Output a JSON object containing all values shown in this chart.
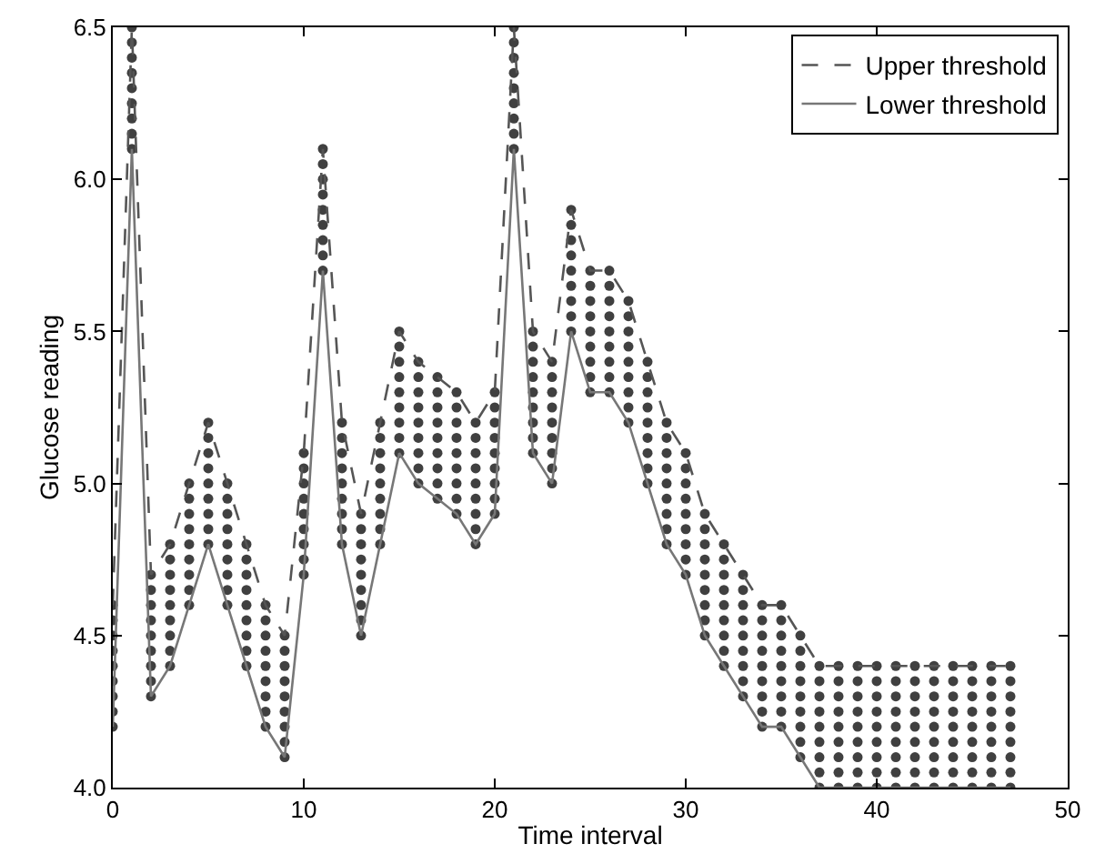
{
  "chart_data": {
    "type": "scatter",
    "xlabel": "Time interval",
    "ylabel": "Glucose reading",
    "xlim": [
      0,
      50
    ],
    "xticks": [
      0,
      10,
      20,
      30,
      40,
      50
    ],
    "ylim": [
      4.0,
      6.5
    ],
    "yticks": [
      {
        "value": 4.0,
        "label": "4.0"
      },
      {
        "value": 4.5,
        "label": "4.5"
      },
      {
        "value": 5.0,
        "label": "5.0"
      },
      {
        "value": 5.5,
        "label": "5.5"
      },
      {
        "value": 6.0,
        "label": "6.0"
      },
      {
        "value": 6.5,
        "label": "6.5"
      }
    ],
    "legend": "top right",
    "series": [
      {
        "marker": "circle",
        "color": "#404040",
        "x": [
          0,
          0,
          0,
          0,
          0,
          0,
          0,
          0,
          0,
          1,
          1,
          1,
          1,
          1,
          1,
          1,
          1,
          1,
          2,
          2,
          2,
          2,
          2,
          2,
          2,
          2,
          2,
          3,
          3,
          3,
          3,
          3,
          3,
          3,
          3,
          3,
          4,
          4,
          4,
          4,
          4,
          4,
          4,
          4,
          4,
          5,
          5,
          5,
          5,
          5,
          5,
          5,
          5,
          5,
          6,
          6,
          6,
          6,
          6,
          6,
          6,
          6,
          6,
          7,
          7,
          7,
          7,
          7,
          7,
          7,
          7,
          7,
          8,
          8,
          8,
          8,
          8,
          8,
          8,
          8,
          8,
          9,
          9,
          9,
          9,
          9,
          9,
          9,
          9,
          9,
          10,
          10,
          10,
          10,
          10,
          10,
          10,
          10,
          10,
          11,
          11,
          11,
          11,
          11,
          11,
          11,
          11,
          11,
          12,
          12,
          12,
          12,
          12,
          12,
          12,
          12,
          12,
          13,
          13,
          13,
          13,
          13,
          13,
          13,
          13,
          13,
          14,
          14,
          14,
          14,
          14,
          14,
          14,
          14,
          14,
          15,
          15,
          15,
          15,
          15,
          15,
          15,
          15,
          15,
          16,
          16,
          16,
          16,
          16,
          16,
          16,
          16,
          16,
          17,
          17,
          17,
          17,
          17,
          17,
          17,
          17,
          17,
          18,
          18,
          18,
          18,
          18,
          18,
          18,
          18,
          18,
          19,
          19,
          19,
          19,
          19,
          19,
          19,
          19,
          19,
          20,
          20,
          20,
          20,
          20,
          20,
          20,
          20,
          20,
          21,
          21,
          21,
          21,
          21,
          21,
          21,
          21,
          21,
          22,
          22,
          22,
          22,
          22,
          22,
          22,
          22,
          22,
          23,
          23,
          23,
          23,
          23,
          23,
          23,
          23,
          23,
          24,
          24,
          24,
          24,
          24,
          24,
          24,
          24,
          24,
          25,
          25,
          25,
          25,
          25,
          25,
          25,
          25,
          25,
          26,
          26,
          26,
          26,
          26,
          26,
          26,
          26,
          26,
          27,
          27,
          27,
          27,
          27,
          27,
          27,
          27,
          27,
          28,
          28,
          28,
          28,
          28,
          28,
          28,
          28,
          28,
          29,
          29,
          29,
          29,
          29,
          29,
          29,
          29,
          29,
          30,
          30,
          30,
          30,
          30,
          30,
          30,
          30,
          30,
          31,
          31,
          31,
          31,
          31,
          31,
          31,
          31,
          31,
          32,
          32,
          32,
          32,
          32,
          32,
          32,
          32,
          32,
          33,
          33,
          33,
          33,
          33,
          33,
          33,
          33,
          33,
          34,
          34,
          34,
          34,
          34,
          34,
          34,
          34,
          34,
          35,
          35,
          35,
          35,
          35,
          35,
          35,
          35,
          35,
          36,
          36,
          36,
          36,
          36,
          36,
          36,
          36,
          36,
          37,
          37,
          37,
          37,
          37,
          37,
          37,
          37,
          37,
          38,
          38,
          38,
          38,
          38,
          38,
          38,
          38,
          38,
          39,
          39,
          39,
          39,
          39,
          39,
          39,
          39,
          39,
          40,
          40,
          40,
          40,
          40,
          40,
          40,
          40,
          40,
          41,
          41,
          41,
          41,
          41,
          41,
          41,
          41,
          41,
          42,
          42,
          42,
          42,
          42,
          42,
          42,
          42,
          42,
          43,
          43,
          43,
          43,
          43,
          43,
          43,
          43,
          43,
          44,
          44,
          44,
          44,
          44,
          44,
          44,
          44,
          44,
          45,
          45,
          45,
          45,
          45,
          45,
          45,
          45,
          45,
          46,
          46,
          46,
          46,
          46,
          46,
          46,
          46,
          46,
          47,
          47,
          47,
          47,
          47,
          47,
          47,
          47,
          47
        ],
        "values": [
          4.2,
          4.25,
          4.3,
          4.35,
          4.4,
          4.45,
          4.5,
          4.55,
          4.6,
          6.1,
          6.15,
          6.2,
          6.25,
          6.3,
          6.35,
          6.4,
          6.45,
          6.5,
          4.3,
          4.35,
          4.4,
          4.45,
          4.5,
          4.55,
          4.6,
          4.65,
          4.7,
          4.4,
          4.45,
          4.5,
          4.55,
          4.6,
          4.65,
          4.7,
          4.75,
          4.8,
          4.6,
          4.65,
          4.7,
          4.75,
          4.8,
          4.85,
          4.9,
          4.95,
          5.0,
          4.8,
          4.85,
          4.9,
          4.95,
          5.0,
          5.05,
          5.1,
          5.15,
          5.2,
          4.6,
          4.65,
          4.7,
          4.75,
          4.8,
          4.85,
          4.9,
          4.95,
          5.0,
          4.4,
          4.45,
          4.5,
          4.55,
          4.6,
          4.65,
          4.7,
          4.75,
          4.8,
          4.2,
          4.25,
          4.3,
          4.35,
          4.4,
          4.45,
          4.5,
          4.55,
          4.6,
          4.1,
          4.15,
          4.2,
          4.25,
          4.3,
          4.35,
          4.4,
          4.45,
          4.5,
          4.7,
          4.75,
          4.8,
          4.85,
          4.9,
          4.95,
          5.0,
          5.05,
          5.1,
          5.7,
          5.75,
          5.8,
          5.85,
          5.9,
          5.95,
          6.0,
          6.05,
          6.1,
          4.8,
          4.85,
          4.9,
          4.95,
          5.0,
          5.05,
          5.1,
          5.15,
          5.2,
          4.5,
          4.55,
          4.6,
          4.65,
          4.7,
          4.75,
          4.8,
          4.85,
          4.9,
          4.8,
          4.85,
          4.9,
          4.95,
          5.0,
          5.05,
          5.1,
          5.15,
          5.2,
          5.1,
          5.15,
          5.2,
          5.25,
          5.3,
          5.35,
          5.4,
          5.45,
          5.5,
          5.0,
          5.05,
          5.1,
          5.15,
          5.2,
          5.25,
          5.3,
          5.35,
          5.4,
          4.95,
          5.0,
          5.05,
          5.1,
          5.15,
          5.2,
          5.25,
          5.3,
          5.35,
          4.9,
          4.95,
          5.0,
          5.05,
          5.1,
          5.15,
          5.2,
          5.25,
          5.3,
          4.8,
          4.85,
          4.9,
          4.95,
          5.0,
          5.05,
          5.1,
          5.15,
          5.2,
          4.9,
          4.95,
          5.0,
          5.05,
          5.1,
          5.15,
          5.2,
          5.25,
          5.3,
          6.1,
          6.15,
          6.2,
          6.25,
          6.3,
          6.35,
          6.4,
          6.45,
          6.5,
          5.1,
          5.15,
          5.2,
          5.25,
          5.3,
          5.35,
          5.4,
          5.45,
          5.5,
          5.0,
          5.05,
          5.1,
          5.15,
          5.2,
          5.25,
          5.3,
          5.35,
          5.4,
          5.5,
          5.55,
          5.6,
          5.65,
          5.7,
          5.75,
          5.8,
          5.85,
          5.9,
          5.3,
          5.35,
          5.4,
          5.45,
          5.5,
          5.55,
          5.6,
          5.65,
          5.7,
          5.3,
          5.35,
          5.4,
          5.45,
          5.5,
          5.55,
          5.6,
          5.65,
          5.7,
          5.2,
          5.25,
          5.3,
          5.35,
          5.4,
          5.45,
          5.5,
          5.55,
          5.6,
          5.0,
          5.05,
          5.1,
          5.15,
          5.2,
          5.25,
          5.3,
          5.35,
          5.4,
          4.8,
          4.85,
          4.9,
          4.95,
          5.0,
          5.05,
          5.1,
          5.15,
          5.2,
          4.7,
          4.75,
          4.8,
          4.85,
          4.9,
          4.95,
          5.0,
          5.05,
          5.1,
          4.5,
          4.55,
          4.6,
          4.65,
          4.7,
          4.75,
          4.8,
          4.85,
          4.9,
          4.4,
          4.45,
          4.5,
          4.55,
          4.6,
          4.65,
          4.7,
          4.75,
          4.8,
          4.3,
          4.35,
          4.4,
          4.45,
          4.5,
          4.55,
          4.6,
          4.65,
          4.7,
          4.2,
          4.25,
          4.3,
          4.35,
          4.4,
          4.45,
          4.5,
          4.55,
          4.6,
          4.2,
          4.25,
          4.3,
          4.35,
          4.4,
          4.45,
          4.5,
          4.55,
          4.6,
          4.1,
          4.15,
          4.2,
          4.25,
          4.3,
          4.35,
          4.4,
          4.45,
          4.5,
          4.0,
          4.05,
          4.1,
          4.15,
          4.2,
          4.25,
          4.3,
          4.35,
          4.4,
          4.0,
          4.05,
          4.1,
          4.15,
          4.2,
          4.25,
          4.3,
          4.35,
          4.4,
          4.0,
          4.05,
          4.1,
          4.15,
          4.2,
          4.25,
          4.3,
          4.35,
          4.4,
          4.0,
          4.05,
          4.1,
          4.15,
          4.2,
          4.25,
          4.3,
          4.35,
          4.4,
          4.0,
          4.05,
          4.1,
          4.15,
          4.2,
          4.25,
          4.3,
          4.35,
          4.4,
          4.0,
          4.05,
          4.1,
          4.15,
          4.2,
          4.25,
          4.3,
          4.35,
          4.4,
          4.0,
          4.05,
          4.1,
          4.15,
          4.2,
          4.25,
          4.3,
          4.35,
          4.4,
          4.0,
          4.05,
          4.1,
          4.15,
          4.2,
          4.25,
          4.3,
          4.35,
          4.4,
          4.0,
          4.05,
          4.1,
          4.15,
          4.2,
          4.25,
          4.3,
          4.35,
          4.4,
          4.0,
          4.05,
          4.1,
          4.15,
          4.2,
          4.25,
          4.3,
          4.35,
          4.4,
          4.0,
          4.05,
          4.1,
          4.15,
          4.2,
          4.25,
          4.3,
          4.35,
          4.4
        ]
      },
      {
        "type": "line",
        "name": "Upper threshold",
        "color": "#555555",
        "line_style": "dashed",
        "marker": "none",
        "x": [
          0,
          1,
          2,
          3,
          4,
          5,
          6,
          7,
          8,
          9,
          10,
          11,
          12,
          13,
          14,
          15,
          16,
          17,
          18,
          19,
          20,
          21,
          22,
          23,
          24,
          25,
          26,
          27,
          28,
          29,
          30,
          31,
          32,
          33,
          34,
          35,
          36,
          37,
          38,
          39,
          40,
          41,
          42,
          43,
          44,
          45,
          46,
          47
        ],
        "values": [
          4.6,
          6.5,
          4.7,
          4.8,
          5.0,
          5.2,
          5.0,
          4.8,
          4.6,
          4.5,
          5.1,
          6.1,
          5.2,
          4.9,
          5.2,
          5.5,
          5.4,
          5.35,
          5.3,
          5.2,
          5.3,
          6.5,
          5.5,
          5.4,
          5.9,
          5.7,
          5.7,
          5.6,
          5.4,
          5.2,
          5.1,
          4.9,
          4.8,
          4.7,
          4.6,
          4.6,
          4.5,
          4.4,
          4.4,
          4.4,
          4.4,
          4.4,
          4.4,
          4.4,
          4.4,
          4.4,
          4.4,
          4.4
        ]
      },
      {
        "type": "line",
        "name": "Lower threshold",
        "color": "#777777",
        "line_style": "solid",
        "marker": "none",
        "x": [
          0,
          1,
          2,
          3,
          4,
          5,
          6,
          7,
          8,
          9,
          10,
          11,
          12,
          13,
          14,
          15,
          16,
          17,
          18,
          19,
          20,
          21,
          22,
          23,
          24,
          25,
          26,
          27,
          28,
          29,
          30,
          31,
          32,
          33,
          34,
          35,
          36,
          37,
          38,
          39,
          40,
          41,
          42,
          43,
          44,
          45,
          46,
          47
        ],
        "values": [
          4.2,
          6.1,
          4.3,
          4.4,
          4.6,
          4.8,
          4.6,
          4.4,
          4.2,
          4.1,
          4.7,
          5.7,
          4.8,
          4.5,
          4.8,
          5.1,
          5.0,
          4.95,
          4.9,
          4.8,
          4.9,
          6.1,
          5.1,
          5.0,
          5.5,
          5.3,
          5.3,
          5.2,
          5.0,
          4.8,
          4.7,
          4.5,
          4.4,
          4.3,
          4.2,
          4.2,
          4.1,
          4.0,
          4.0,
          4.0,
          4.0,
          4.0,
          4.0,
          4.0,
          4.0,
          4.0,
          4.0,
          4.0
        ]
      }
    ]
  }
}
